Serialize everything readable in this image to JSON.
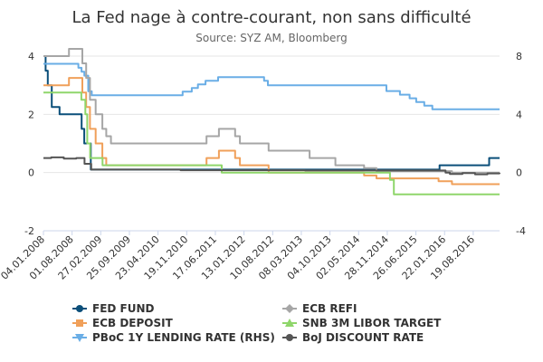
{
  "chart_data": {
    "type": "line",
    "title": "La Fed nage à contre-courant, non sans difficulté",
    "subtitle": "Source: SYZ AM, Bloomberg",
    "xlabel": "",
    "ylabel": "",
    "xlim": [
      "2008-01-04",
      "2017-02-28"
    ],
    "ylim": [
      -2,
      4
    ],
    "ylim_right": [
      -4,
      8
    ],
    "yticks": [
      "4",
      "2",
      "0",
      "-2"
    ],
    "yticks_values": [
      4,
      2,
      0,
      -2
    ],
    "yticks_right": [
      "8",
      "4",
      "0",
      "-4"
    ],
    "yticks_right_values": [
      8,
      4,
      0,
      -4
    ],
    "xticks": [
      "04.01.2008",
      "01.08.2008",
      "27.02.2009",
      "25.09.2009",
      "23.04.2010",
      "19.11.2010",
      "17.06.2011",
      "13.01.2012",
      "10.08.2012",
      "08.03.2013",
      "04.10.2013",
      "02.05.2014",
      "28.11.2014",
      "26.06.2015",
      "22.01.2016",
      "19.08.2016"
    ],
    "xticks_dates": [
      "2008-01-04",
      "2008-08-01",
      "2009-02-27",
      "2009-09-25",
      "2010-04-23",
      "2010-11-19",
      "2011-06-17",
      "2012-01-13",
      "2012-08-10",
      "2013-03-08",
      "2013-10-04",
      "2014-05-02",
      "2014-11-28",
      "2015-06-26",
      "2016-01-22",
      "2016-08-19"
    ],
    "grid": true,
    "legend_position": "bottom",
    "series": [
      {
        "name": "FED FUND",
        "axis": "left",
        "color": "#0b4f7a",
        "marker": "circle",
        "points": [
          [
            "2008-01-04",
            4.0
          ],
          [
            "2008-01-20",
            3.5
          ],
          [
            "2008-02-05",
            3.0
          ],
          [
            "2008-03-05",
            2.25
          ],
          [
            "2008-04-10",
            2.25
          ],
          [
            "2008-05-01",
            2.0
          ],
          [
            "2008-10-01",
            2.0
          ],
          [
            "2008-10-10",
            1.5
          ],
          [
            "2008-10-29",
            1.0
          ],
          [
            "2008-11-20",
            1.0
          ],
          [
            "2008-12-16",
            0.1
          ],
          [
            "2009-03-01",
            0.1
          ],
          [
            "2012-06-01",
            0.1
          ],
          [
            "2015-12-16",
            0.25
          ],
          [
            "2016-12-14",
            0.5
          ],
          [
            "2017-02-28",
            0.5
          ]
        ]
      },
      {
        "name": "ECB DEPOSIT",
        "axis": "left",
        "color": "#f0a05a",
        "marker": "square",
        "points": [
          [
            "2008-01-04",
            3.0
          ],
          [
            "2008-07-09",
            3.25
          ],
          [
            "2008-10-08",
            3.25
          ],
          [
            "2008-10-15",
            2.75
          ],
          [
            "2008-11-12",
            2.25
          ],
          [
            "2008-12-10",
            1.5
          ],
          [
            "2009-01-21",
            1.0
          ],
          [
            "2009-03-11",
            0.5
          ],
          [
            "2009-04-08",
            0.25
          ],
          [
            "2011-04-13",
            0.5
          ],
          [
            "2011-07-13",
            0.75
          ],
          [
            "2011-11-09",
            0.5
          ],
          [
            "2011-12-14",
            0.25
          ],
          [
            "2012-07-11",
            0.0
          ],
          [
            "2014-06-11",
            -0.1
          ],
          [
            "2014-09-10",
            -0.2
          ],
          [
            "2015-12-09",
            -0.3
          ],
          [
            "2016-03-16",
            -0.4
          ],
          [
            "2017-02-28",
            -0.4
          ]
        ]
      },
      {
        "name": "PBoC 1Y LENDING RATE (RHS)",
        "axis": "right",
        "color": "#6aaee6",
        "marker": "triangle-down",
        "points": [
          [
            "2008-01-04",
            7.47
          ],
          [
            "2008-09-16",
            7.2
          ],
          [
            "2008-10-09",
            6.93
          ],
          [
            "2008-10-30",
            6.66
          ],
          [
            "2008-11-27",
            5.58
          ],
          [
            "2008-12-23",
            5.31
          ],
          [
            "2010-10-20",
            5.56
          ],
          [
            "2010-12-26",
            5.81
          ],
          [
            "2011-02-09",
            6.06
          ],
          [
            "2011-04-06",
            6.31
          ],
          [
            "2011-07-07",
            6.56
          ],
          [
            "2012-06-08",
            6.31
          ],
          [
            "2012-07-06",
            6.0
          ],
          [
            "2014-11-22",
            5.6
          ],
          [
            "2015-03-01",
            5.35
          ],
          [
            "2015-05-11",
            5.1
          ],
          [
            "2015-06-28",
            4.85
          ],
          [
            "2015-08-26",
            4.6
          ],
          [
            "2015-10-24",
            4.35
          ],
          [
            "2017-02-28",
            4.35
          ]
        ]
      },
      {
        "name": "ECB REFI",
        "axis": "left",
        "color": "#a6a6a6",
        "marker": "diamond",
        "points": [
          [
            "2008-01-04",
            4.0
          ],
          [
            "2008-07-09",
            4.25
          ],
          [
            "2008-10-08",
            4.25
          ],
          [
            "2008-10-15",
            3.75
          ],
          [
            "2008-11-12",
            3.25
          ],
          [
            "2008-12-10",
            2.5
          ],
          [
            "2009-01-21",
            2.0
          ],
          [
            "2009-03-11",
            1.5
          ],
          [
            "2009-04-08",
            1.25
          ],
          [
            "2009-05-13",
            1.0
          ],
          [
            "2011-04-13",
            1.25
          ],
          [
            "2011-07-13",
            1.5
          ],
          [
            "2011-11-09",
            1.25
          ],
          [
            "2011-12-14",
            1.0
          ],
          [
            "2012-07-11",
            0.75
          ],
          [
            "2013-05-08",
            0.5
          ],
          [
            "2013-11-13",
            0.25
          ],
          [
            "2014-06-11",
            0.15
          ],
          [
            "2014-09-10",
            0.05
          ],
          [
            "2016-03-16",
            0.0
          ],
          [
            "2017-02-28",
            0.0
          ]
        ]
      },
      {
        "name": "SNB 3M LIBOR TARGET",
        "axis": "left",
        "color": "#8fd66b",
        "marker": "triangle",
        "points": [
          [
            "2008-01-04",
            2.75
          ],
          [
            "2008-10-08",
            2.5
          ],
          [
            "2008-11-06",
            2.0
          ],
          [
            "2008-11-20",
            1.0
          ],
          [
            "2008-12-11",
            0.5
          ],
          [
            "2009-03-12",
            0.25
          ],
          [
            "2011-08-03",
            0.0
          ],
          [
            "2014-12-18",
            -0.25
          ],
          [
            "2015-01-15",
            -0.75
          ],
          [
            "2017-02-28",
            -0.75
          ]
        ]
      },
      {
        "name": "BoJ DISCOUNT RATE",
        "axis": "left",
        "color": "#555555",
        "marker": "circle",
        "points": [
          [
            "2008-01-04",
            0.5
          ],
          [
            "2008-03-01",
            0.52
          ],
          [
            "2008-06-01",
            0.48
          ],
          [
            "2008-09-01",
            0.5
          ],
          [
            "2008-10-31",
            0.3
          ],
          [
            "2008-12-19",
            0.1
          ],
          [
            "2010-10-05",
            0.08
          ],
          [
            "2013-04-04",
            0.07
          ],
          [
            "2016-01-29",
            0.0
          ],
          [
            "2016-03-01",
            -0.05
          ],
          [
            "2016-06-01",
            -0.02
          ],
          [
            "2016-09-01",
            -0.06
          ],
          [
            "2016-12-01",
            -0.03
          ],
          [
            "2017-02-28",
            -0.05
          ]
        ]
      }
    ]
  }
}
